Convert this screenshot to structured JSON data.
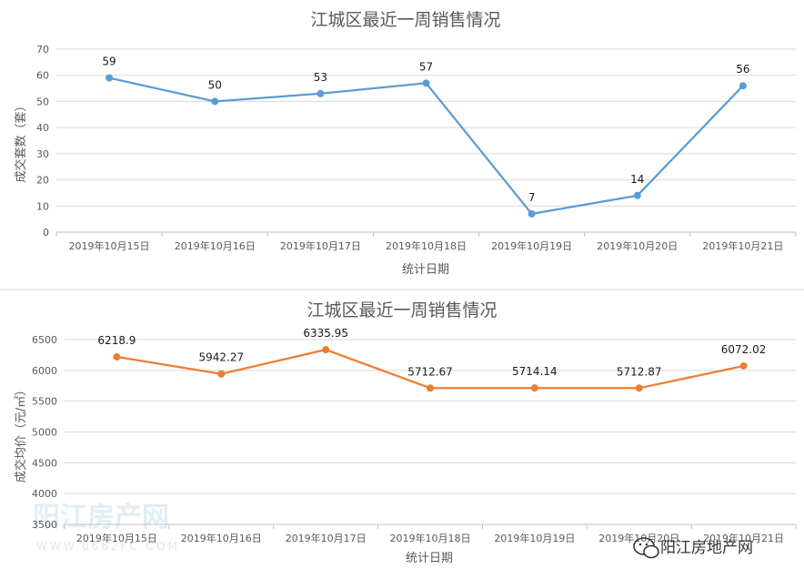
{
  "chart_data": [
    {
      "type": "line",
      "title": "江城区最近一周销售情况",
      "xlabel": "统计日期",
      "ylabel": "成交套数（套）",
      "categories": [
        "2019年10月15日",
        "2019年10月16日",
        "2019年10月17日",
        "2019年10月18日",
        "2019年10月19日",
        "2019年10月20日",
        "2019年10月21日"
      ],
      "series": [
        {
          "values": [
            59,
            50,
            53,
            57,
            7,
            14,
            56
          ],
          "labels": [
            "59",
            "50",
            "53",
            "57",
            "7",
            "14",
            "56"
          ],
          "color": "#5b9bd5"
        }
      ],
      "ylim": [
        0,
        70
      ],
      "yticks": [
        0,
        10,
        20,
        30,
        40,
        50,
        60,
        70
      ],
      "grid": true,
      "legend": "none"
    },
    {
      "type": "line",
      "title": "江城区最近一周销售情况",
      "xlabel": "统计日期",
      "ylabel": "成交均价（元/㎡）",
      "categories": [
        "2019年10月15日",
        "2019年10月16日",
        "2019年10月17日",
        "2019年10月18日",
        "2019年10月19日",
        "2019年10月20日",
        "2019年10月21日"
      ],
      "series": [
        {
          "values": [
            6218.9,
            5942.27,
            6335.95,
            5712.67,
            5714.14,
            5712.87,
            6072.02
          ],
          "labels": [
            "6218.9",
            "5942.27",
            "6335.95",
            "5712.67",
            "5714.14",
            "5712.87",
            "6072.02"
          ],
          "color": "#ed7d31"
        }
      ],
      "ylim": [
        3500,
        6500
      ],
      "yticks": [
        3500,
        4000,
        4500,
        5000,
        5500,
        6000,
        6500
      ],
      "grid": true,
      "legend": "none"
    }
  ],
  "watermark": {
    "text": "阳江房产网",
    "sub": "WWW.0662FC.COM"
  },
  "brand": {
    "icon": "wechat-icon",
    "text": "阳江房地产网"
  }
}
